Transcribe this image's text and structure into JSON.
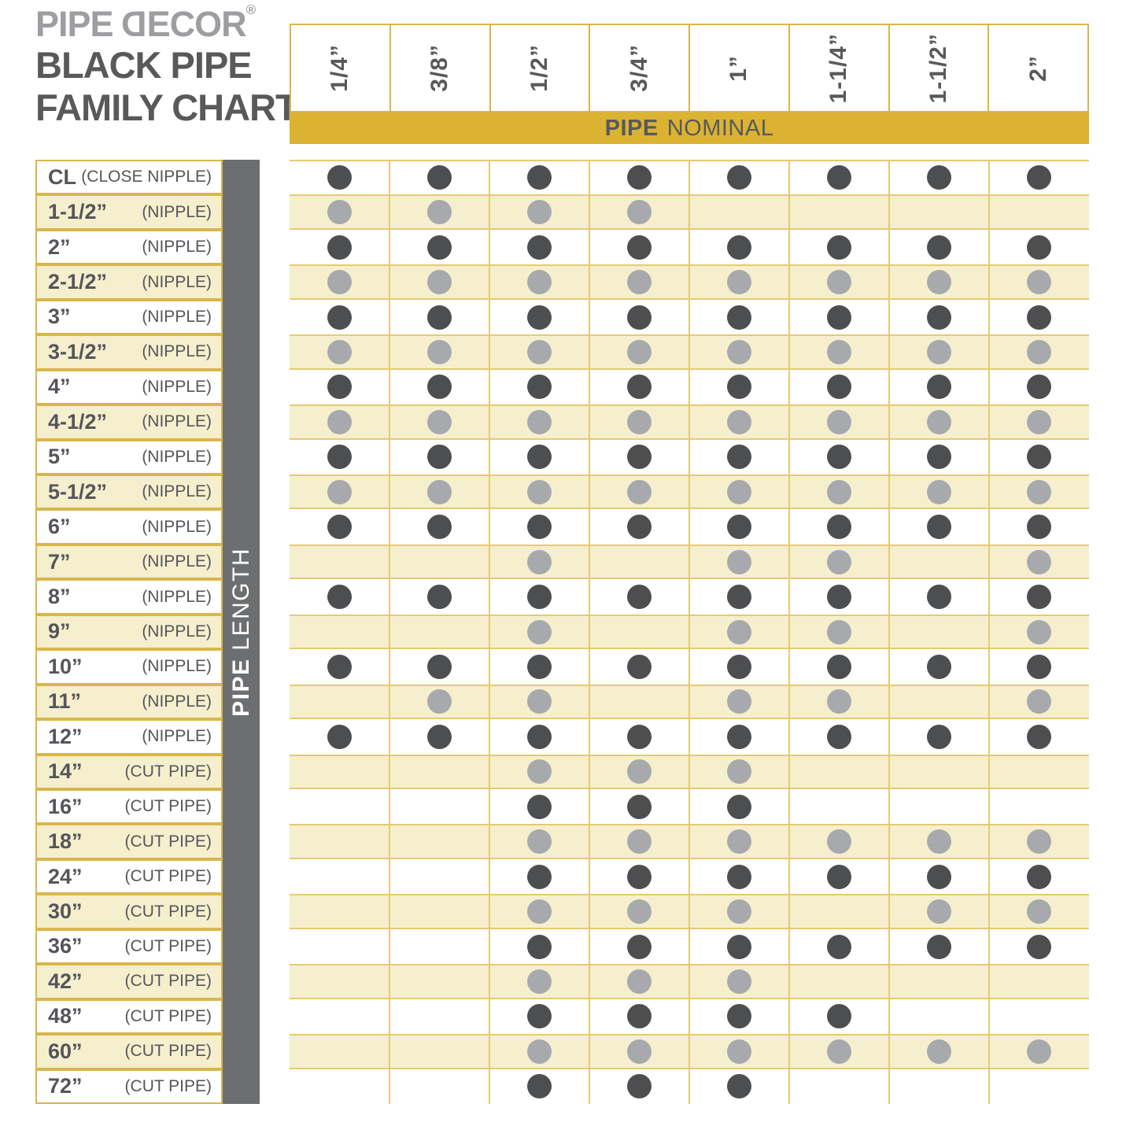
{
  "brand": {
    "logo_part1": "PIPE ",
    "logo_d": "D",
    "logo_part2": "ECOR",
    "registered": "®",
    "title_line1": "BLACK PIPE",
    "title_line2": "FAMILY CHART"
  },
  "header": {
    "nominal_bold": "PIPE",
    "nominal_rest": "NOMINAL",
    "length_bold": "PIPE",
    "length_rest": " LENGTH"
  },
  "colors": {
    "gold_bar": "#DCB233",
    "gold_border": "#D9B64C",
    "grid_line": "#E5CA74",
    "cream_row": "#F6EFCE",
    "dark_dot": "#4D4E50",
    "gray_dot": "#A7A9AC",
    "dark_text": "#58595B",
    "logo_gray": "#9C9EA1",
    "length_bar_gray": "#6D6E70"
  },
  "chart_data": {
    "type": "table",
    "title": "BLACK PIPE FAMILY CHART",
    "column_group_label": "PIPE NOMINAL",
    "row_group_label": "PIPE LENGTH",
    "columns": [
      "1/4”",
      "3/8”",
      "1/2”",
      "3/4”",
      "1”",
      "1-1/4”",
      "1-1/2”",
      "2”"
    ],
    "rows": [
      {
        "label": "CL",
        "note": "(CLOSE NIPPLE)",
        "dot_style": "dark",
        "available": [
          1,
          1,
          1,
          1,
          1,
          1,
          1,
          1
        ]
      },
      {
        "label": "1-1/2”",
        "note": "(NIPPLE)",
        "dot_style": "gray",
        "available": [
          1,
          1,
          1,
          1,
          0,
          0,
          0,
          0
        ]
      },
      {
        "label": "2”",
        "note": "(NIPPLE)",
        "dot_style": "dark",
        "available": [
          1,
          1,
          1,
          1,
          1,
          1,
          1,
          1
        ]
      },
      {
        "label": "2-1/2”",
        "note": "(NIPPLE)",
        "dot_style": "gray",
        "available": [
          1,
          1,
          1,
          1,
          1,
          1,
          1,
          1
        ]
      },
      {
        "label": "3”",
        "note": "(NIPPLE)",
        "dot_style": "dark",
        "available": [
          1,
          1,
          1,
          1,
          1,
          1,
          1,
          1
        ]
      },
      {
        "label": "3-1/2”",
        "note": "(NIPPLE)",
        "dot_style": "gray",
        "available": [
          1,
          1,
          1,
          1,
          1,
          1,
          1,
          1
        ]
      },
      {
        "label": "4”",
        "note": "(NIPPLE)",
        "dot_style": "dark",
        "available": [
          1,
          1,
          1,
          1,
          1,
          1,
          1,
          1
        ]
      },
      {
        "label": "4-1/2”",
        "note": "(NIPPLE)",
        "dot_style": "gray",
        "available": [
          1,
          1,
          1,
          1,
          1,
          1,
          1,
          1
        ]
      },
      {
        "label": "5”",
        "note": "(NIPPLE)",
        "dot_style": "dark",
        "available": [
          1,
          1,
          1,
          1,
          1,
          1,
          1,
          1
        ]
      },
      {
        "label": "5-1/2”",
        "note": "(NIPPLE)",
        "dot_style": "gray",
        "available": [
          1,
          1,
          1,
          1,
          1,
          1,
          1,
          1
        ]
      },
      {
        "label": "6”",
        "note": "(NIPPLE)",
        "dot_style": "dark",
        "available": [
          1,
          1,
          1,
          1,
          1,
          1,
          1,
          1
        ]
      },
      {
        "label": "7”",
        "note": "(NIPPLE)",
        "dot_style": "gray",
        "available": [
          0,
          0,
          1,
          0,
          1,
          1,
          0,
          1
        ]
      },
      {
        "label": "8”",
        "note": "(NIPPLE)",
        "dot_style": "dark",
        "available": [
          1,
          1,
          1,
          1,
          1,
          1,
          1,
          1
        ]
      },
      {
        "label": "9”",
        "note": "(NIPPLE)",
        "dot_style": "gray",
        "available": [
          0,
          0,
          1,
          0,
          1,
          1,
          0,
          1
        ]
      },
      {
        "label": "10”",
        "note": "(NIPPLE)",
        "dot_style": "dark",
        "available": [
          1,
          1,
          1,
          1,
          1,
          1,
          1,
          1
        ]
      },
      {
        "label": "11”",
        "note": "(NIPPLE)",
        "dot_style": "gray",
        "available": [
          0,
          1,
          1,
          0,
          1,
          1,
          0,
          1
        ]
      },
      {
        "label": "12”",
        "note": "(NIPPLE)",
        "dot_style": "dark",
        "available": [
          1,
          1,
          1,
          1,
          1,
          1,
          1,
          1
        ]
      },
      {
        "label": "14”",
        "note": "(CUT PIPE)",
        "dot_style": "gray",
        "available": [
          0,
          0,
          1,
          1,
          1,
          0,
          0,
          0
        ]
      },
      {
        "label": "16”",
        "note": "(CUT PIPE)",
        "dot_style": "dark",
        "available": [
          0,
          0,
          1,
          1,
          1,
          0,
          0,
          0
        ]
      },
      {
        "label": "18”",
        "note": "(CUT PIPE)",
        "dot_style": "gray",
        "available": [
          0,
          0,
          1,
          1,
          1,
          1,
          1,
          1
        ]
      },
      {
        "label": "24”",
        "note": "(CUT PIPE)",
        "dot_style": "dark",
        "available": [
          0,
          0,
          1,
          1,
          1,
          1,
          1,
          1
        ]
      },
      {
        "label": "30”",
        "note": "(CUT PIPE)",
        "dot_style": "gray",
        "available": [
          0,
          0,
          1,
          1,
          1,
          0,
          1,
          1
        ]
      },
      {
        "label": "36”",
        "note": "(CUT PIPE)",
        "dot_style": "dark",
        "available": [
          0,
          0,
          1,
          1,
          1,
          1,
          1,
          1
        ]
      },
      {
        "label": "42”",
        "note": "(CUT PIPE)",
        "dot_style": "gray",
        "available": [
          0,
          0,
          1,
          1,
          1,
          0,
          0,
          0
        ]
      },
      {
        "label": "48”",
        "note": "(CUT PIPE)",
        "dot_style": "dark",
        "available": [
          0,
          0,
          1,
          1,
          1,
          1,
          0,
          0
        ]
      },
      {
        "label": "60”",
        "note": "(CUT PIPE)",
        "dot_style": "gray",
        "available": [
          0,
          0,
          1,
          1,
          1,
          1,
          1,
          1
        ]
      },
      {
        "label": "72”",
        "note": "(CUT PIPE)",
        "dot_style": "dark",
        "available": [
          0,
          0,
          1,
          1,
          1,
          0,
          0,
          0
        ]
      }
    ]
  }
}
